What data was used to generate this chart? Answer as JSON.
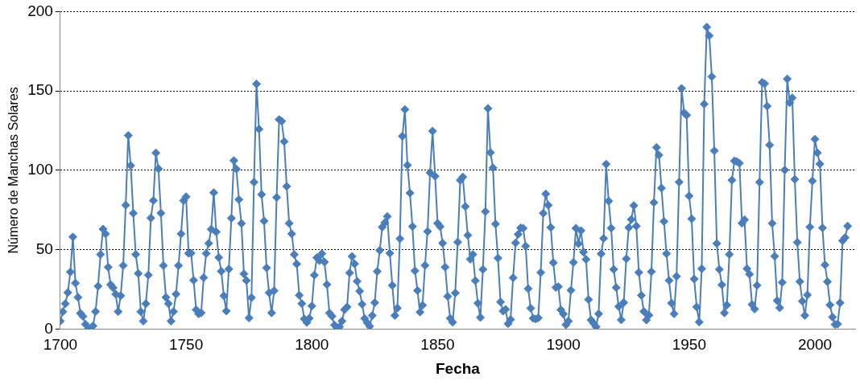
{
  "chart_data": {
    "type": "line",
    "xlabel": "Fecha",
    "ylabel": "Número de Manchas Solares",
    "x": [
      1700,
      1701,
      1702,
      1703,
      1704,
      1705,
      1706,
      1707,
      1708,
      1709,
      1710,
      1711,
      1712,
      1713,
      1714,
      1715,
      1716,
      1717,
      1718,
      1719,
      1720,
      1721,
      1722,
      1723,
      1724,
      1725,
      1726,
      1727,
      1728,
      1729,
      1730,
      1731,
      1732,
      1733,
      1734,
      1735,
      1736,
      1737,
      1738,
      1739,
      1740,
      1741,
      1742,
      1743,
      1744,
      1745,
      1746,
      1747,
      1748,
      1749,
      1750,
      1751,
      1752,
      1753,
      1754,
      1755,
      1756,
      1757,
      1758,
      1759,
      1760,
      1761,
      1762,
      1763,
      1764,
      1765,
      1766,
      1767,
      1768,
      1769,
      1770,
      1771,
      1772,
      1773,
      1774,
      1775,
      1776,
      1777,
      1778,
      1779,
      1780,
      1781,
      1782,
      1783,
      1784,
      1785,
      1786,
      1787,
      1788,
      1789,
      1790,
      1791,
      1792,
      1793,
      1794,
      1795,
      1796,
      1797,
      1798,
      1799,
      1800,
      1801,
      1802,
      1803,
      1804,
      1805,
      1806,
      1807,
      1808,
      1809,
      1810,
      1811,
      1812,
      1813,
      1814,
      1815,
      1816,
      1817,
      1818,
      1819,
      1820,
      1821,
      1822,
      1823,
      1824,
      1825,
      1826,
      1827,
      1828,
      1829,
      1830,
      1831,
      1832,
      1833,
      1834,
      1835,
      1836,
      1837,
      1838,
      1839,
      1840,
      1841,
      1842,
      1843,
      1844,
      1845,
      1846,
      1847,
      1848,
      1849,
      1850,
      1851,
      1852,
      1853,
      1854,
      1855,
      1856,
      1857,
      1858,
      1859,
      1860,
      1861,
      1862,
      1863,
      1864,
      1865,
      1866,
      1867,
      1868,
      1869,
      1870,
      1871,
      1872,
      1873,
      1874,
      1875,
      1876,
      1877,
      1878,
      1879,
      1880,
      1881,
      1882,
      1883,
      1884,
      1885,
      1886,
      1887,
      1888,
      1889,
      1890,
      1891,
      1892,
      1893,
      1894,
      1895,
      1896,
      1897,
      1898,
      1899,
      1900,
      1901,
      1902,
      1903,
      1904,
      1905,
      1906,
      1907,
      1908,
      1909,
      1910,
      1911,
      1912,
      1913,
      1914,
      1915,
      1916,
      1917,
      1918,
      1919,
      1920,
      1921,
      1922,
      1923,
      1924,
      1925,
      1926,
      1927,
      1928,
      1929,
      1930,
      1931,
      1932,
      1933,
      1934,
      1935,
      1936,
      1937,
      1938,
      1939,
      1940,
      1941,
      1942,
      1943,
      1944,
      1945,
      1946,
      1947,
      1948,
      1949,
      1950,
      1951,
      1952,
      1953,
      1954,
      1955,
      1956,
      1957,
      1958,
      1959,
      1960,
      1961,
      1962,
      1963,
      1964,
      1965,
      1966,
      1967,
      1968,
      1969,
      1970,
      1971,
      1972,
      1973,
      1974,
      1975,
      1976,
      1977,
      1978,
      1979,
      1980,
      1981,
      1982,
      1983,
      1984,
      1985,
      1986,
      1987,
      1988,
      1989,
      1990,
      1991,
      1992,
      1993,
      1994,
      1995,
      1996,
      1997,
      1998,
      1999,
      2000,
      2001,
      2002,
      2003,
      2004,
      2005,
      2006,
      2007,
      2008,
      2009,
      2010,
      2011,
      2012,
      2013
    ],
    "series": [
      {
        "color": "#4a7ebb",
        "values": [
          5,
          11,
          16,
          23,
          36,
          58,
          29,
          20,
          10,
          8,
          3,
          0,
          0,
          2,
          11,
          27,
          47,
          63,
          60,
          39,
          28,
          26,
          22,
          11,
          21,
          40,
          78,
          122,
          103,
          73,
          47,
          35,
          11,
          5,
          16,
          34,
          70,
          81,
          111,
          101,
          73,
          40,
          20,
          16,
          5,
          11,
          22,
          40,
          60,
          80.9,
          83.4,
          47.7,
          47.8,
          30.7,
          12.2,
          9.6,
          10.2,
          32.4,
          47.6,
          54,
          62.9,
          85.9,
          61.2,
          45.1,
          36.4,
          20.9,
          11.4,
          37.8,
          69.8,
          106.1,
          100.8,
          81.6,
          66.5,
          34.8,
          30.6,
          7,
          19.8,
          92.5,
          154.4,
          125.9,
          84.8,
          68.1,
          38.5,
          22.8,
          10.2,
          24.1,
          82.9,
          132,
          130.9,
          118.1,
          89.9,
          66.6,
          60,
          46.9,
          41,
          21.3,
          16,
          6.4,
          4.1,
          6.8,
          14.5,
          34,
          45,
          43.1,
          47.5,
          42.2,
          28.1,
          10.1,
          8.1,
          2.5,
          0,
          1.4,
          5,
          12.2,
          13.9,
          35.4,
          45.8,
          41.1,
          30.1,
          23.9,
          15.6,
          6.6,
          4,
          1.8,
          8.5,
          16.6,
          36.3,
          49.6,
          64.2,
          67,
          70.9,
          47.8,
          27.5,
          8.5,
          13.2,
          56.9,
          121.5,
          138.3,
          103.2,
          85.7,
          64.6,
          36.7,
          24.2,
          10.7,
          15,
          40.1,
          61.5,
          98.5,
          124.7,
          96.3,
          66.6,
          64.5,
          54.1,
          39,
          20.6,
          6.7,
          4.3,
          22.7,
          54.8,
          93.8,
          95.8,
          77.2,
          59.1,
          44,
          47,
          30.5,
          16.3,
          7.3,
          37.6,
          74,
          139,
          111.2,
          101.6,
          66.2,
          44.7,
          17,
          11.3,
          12.4,
          3.4,
          6,
          32.3,
          54.3,
          59.7,
          63.7,
          63.5,
          52.2,
          25.4,
          13.1,
          6.8,
          6.3,
          7.1,
          35.6,
          73,
          85.1,
          78,
          64,
          41.8,
          26.2,
          26.7,
          12.1,
          9.5,
          2.7,
          5,
          24.4,
          42,
          63.5,
          53.8,
          62,
          48.5,
          43.9,
          18.6,
          5.7,
          3.6,
          1.4,
          9.6,
          47.4,
          57.1,
          103.9,
          80.6,
          63.6,
          37.6,
          26.1,
          14.2,
          5.8,
          16.7,
          44.3,
          63.9,
          69,
          77.8,
          64.9,
          35.7,
          21.2,
          11.1,
          5.7,
          8.7,
          36.1,
          79.7,
          114.4,
          109.6,
          88.8,
          67.8,
          47.5,
          30.6,
          16.3,
          9.6,
          33.2,
          92.6,
          151.6,
          136.3,
          134.7,
          83.9,
          69.4,
          31.5,
          13.9,
          4.4,
          38,
          141.7,
          190.2,
          184.8,
          159,
          112.3,
          53.9,
          37.6,
          27.9,
          10.2,
          15.1,
          47,
          93.8,
          105.9,
          105.5,
          104.5,
          66.6,
          68.9,
          38,
          34.5,
          15.5,
          12.6,
          27.5,
          92.5,
          155.4,
          154.6,
          140.4,
          115.9,
          66.6,
          45.9,
          17.9,
          13.4,
          29.4,
          100.2,
          157.6,
          142.6,
          145.7,
          94.3,
          54.6,
          29.9,
          17.5,
          8.6,
          21.5,
          64.3,
          93.3,
          119.6,
          111,
          104,
          63.7,
          40.4,
          29.8,
          15.2,
          7.5,
          2.9,
          3.1,
          16.5,
          55.7,
          57.6,
          64.9
        ]
      }
    ],
    "xlim": [
      1700,
      2016
    ],
    "xticks": [
      1700,
      1750,
      1800,
      1850,
      1900,
      1950,
      2000
    ],
    "ylim": [
      0,
      200
    ],
    "yticks": [
      0,
      50,
      100,
      150,
      200
    ],
    "grid": "y",
    "line_style": "solid",
    "marker": "diamond"
  }
}
